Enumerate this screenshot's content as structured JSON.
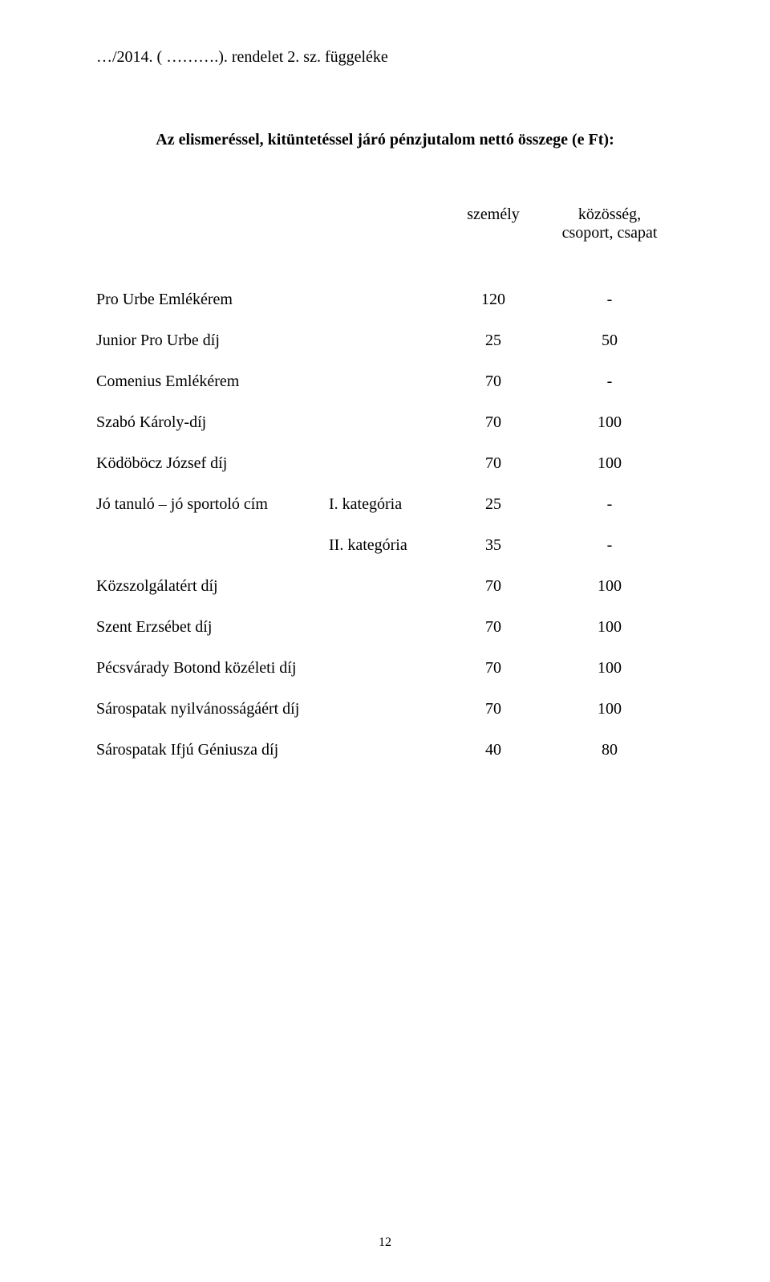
{
  "header": "…/2014. ( ……….). rendelet 2. sz. függeléke",
  "title": "Az elismeréssel, kitüntetéssel járó pénzjutalom nettó összege (e Ft):",
  "columns": {
    "col1": "személy",
    "col2": "közösség,\ncsoport, csapat"
  },
  "rows": [
    {
      "label": "Pro Urbe Emlékérem",
      "cat": "",
      "v1": "120",
      "v2": "-"
    },
    {
      "label": "Junior Pro Urbe díj",
      "cat": "",
      "v1": "25",
      "v2": "50"
    },
    {
      "label": "Comenius Emlékérem",
      "cat": "",
      "v1": "70",
      "v2": "-"
    },
    {
      "label": "Szabó Károly-díj",
      "cat": "",
      "v1": "70",
      "v2": "100"
    },
    {
      "label": "Ködöböcz József díj",
      "cat": "",
      "v1": "70",
      "v2": "100"
    },
    {
      "label": "Jó tanuló – jó sportoló cím",
      "cat": "I. kategória",
      "v1": "25",
      "v2": "-"
    },
    {
      "label": "",
      "cat": "II. kategória",
      "v1": "35",
      "v2": "-"
    },
    {
      "label": "Közszolgálatért díj",
      "cat": "",
      "v1": "70",
      "v2": "100"
    },
    {
      "label": "Szent Erzsébet díj",
      "cat": "",
      "v1": "70",
      "v2": "100"
    },
    {
      "label": "Pécsvárady Botond közéleti díj",
      "cat": "",
      "v1": "70",
      "v2": "100"
    },
    {
      "label": "Sárospatak nyilvánosságáért díj",
      "cat": "",
      "v1": "70",
      "v2": "100"
    },
    {
      "label": "Sárospatak Ifjú Géniusza díj",
      "cat": "",
      "v1": "40",
      "v2": "80"
    }
  ],
  "pageNumber": "12"
}
